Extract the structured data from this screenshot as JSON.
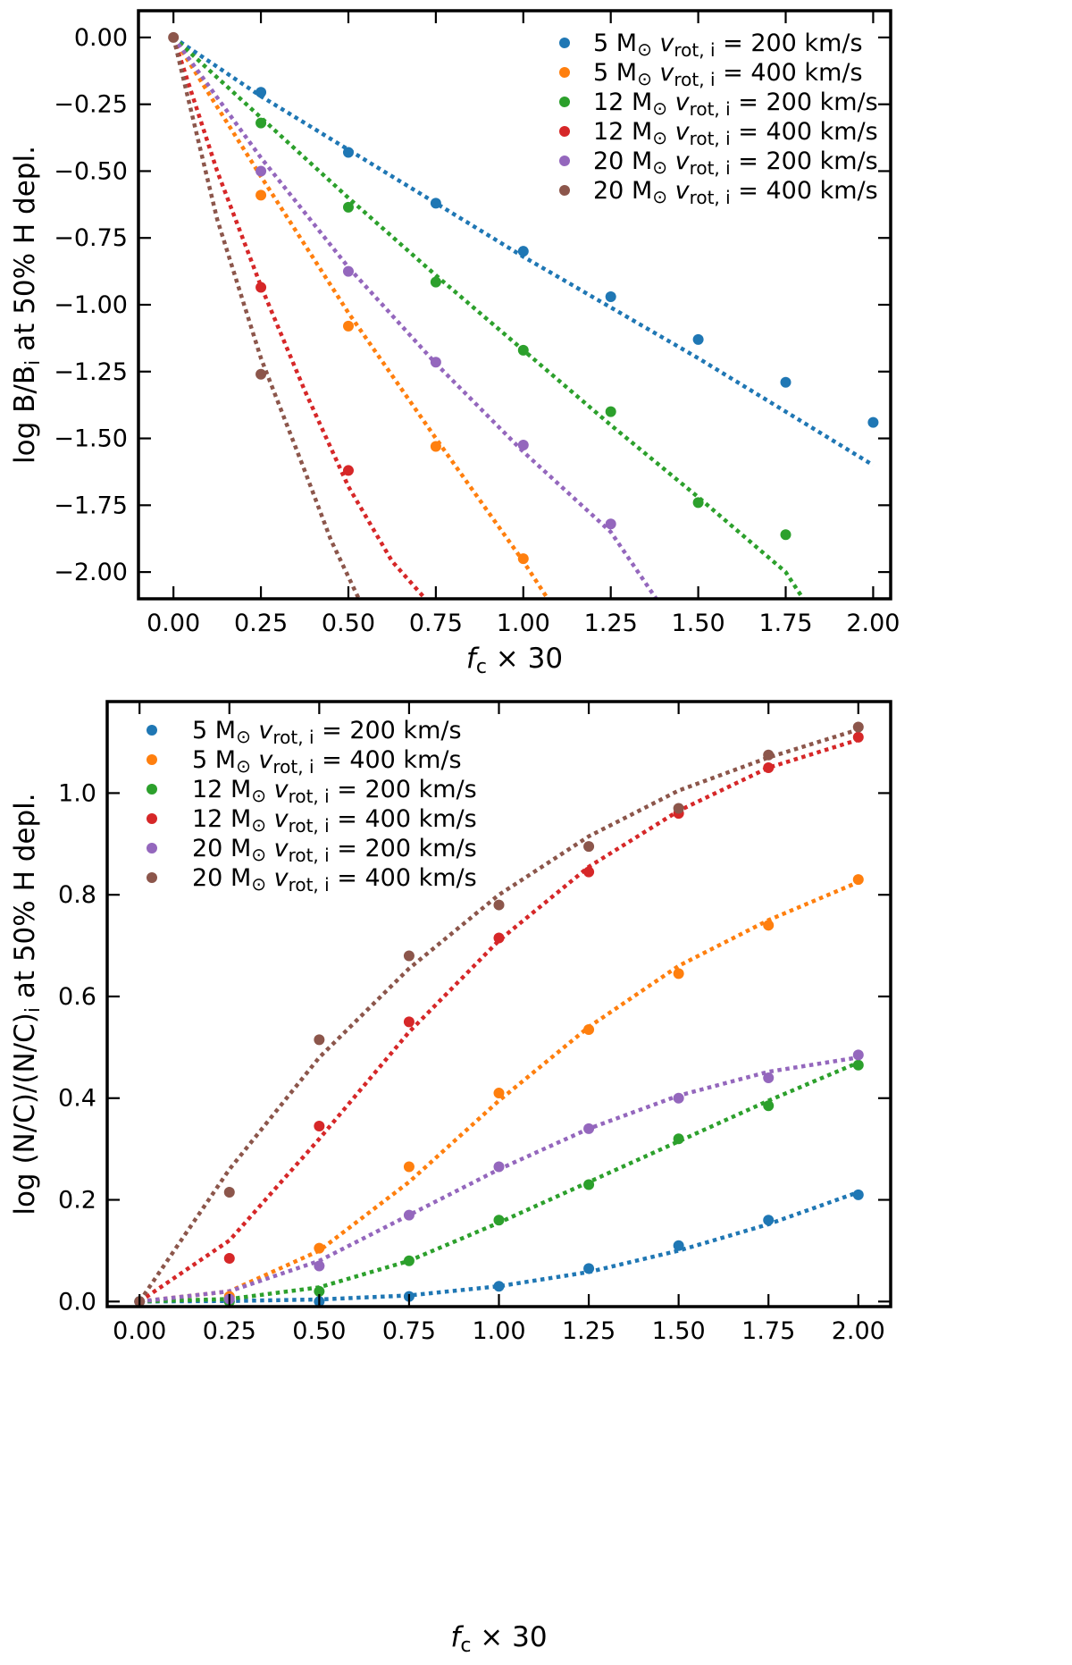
{
  "chart_data": [
    {
      "type": "scatter",
      "title": "",
      "xlabel": "f_c × 30",
      "ylabel": "log B/B_i at 50% H depl.",
      "xlim": [
        -0.1,
        2.05
      ],
      "ylim": [
        -2.1,
        0.1
      ],
      "xticks": [
        0.0,
        0.25,
        0.5,
        0.75,
        1.0,
        1.25,
        1.5,
        1.75,
        2.0
      ],
      "xtick_labels": [
        "0.00",
        "0.25",
        "0.50",
        "0.75",
        "1.00",
        "1.25",
        "1.50",
        "1.75",
        "2.00"
      ],
      "yticks": [
        0.0,
        -0.25,
        -0.5,
        -0.75,
        -1.0,
        -1.25,
        -1.5,
        -1.75,
        -2.0
      ],
      "ytick_labels": [
        "0.00",
        "−0.25",
        "−0.50",
        "−0.75",
        "−1.00",
        "−1.25",
        "−1.50",
        "−1.75",
        "−2.00"
      ],
      "grid": false,
      "legend_position": "top-right",
      "series": [
        {
          "mass": "5",
          "vrot": "200",
          "unit": "km/s",
          "color": "#1f77b4",
          "x": [
            0.25,
            0.5,
            0.75,
            1.0,
            1.25,
            1.5,
            1.75,
            2.0
          ],
          "y": [
            -0.205,
            -0.43,
            -0.62,
            -0.8,
            -0.97,
            -1.13,
            -1.29,
            -1.44
          ],
          "fit": [
            [
              0,
              0
            ],
            [
              0.25,
              -0.22
            ],
            [
              0.5,
              -0.42
            ],
            [
              0.75,
              -0.62
            ],
            [
              1.0,
              -0.82
            ],
            [
              1.25,
              -1.01
            ],
            [
              1.5,
              -1.2
            ],
            [
              1.75,
              -1.4
            ],
            [
              2.0,
              -1.6
            ]
          ]
        },
        {
          "mass": "5",
          "vrot": "400",
          "unit": "km/s",
          "color": "#ff7f0e",
          "x": [
            0.25,
            0.5,
            0.75,
            1.0
          ],
          "y": [
            -0.59,
            -1.08,
            -1.53,
            -1.95
          ],
          "fit": [
            [
              0,
              0
            ],
            [
              0.25,
              -0.52
            ],
            [
              0.5,
              -1.03
            ],
            [
              0.75,
              -1.5
            ],
            [
              1.0,
              -1.96
            ],
            [
              1.07,
              -2.1
            ]
          ]
        },
        {
          "mass": "12",
          "vrot": "200",
          "unit": "km/s",
          "color": "#2ca02c",
          "x": [
            0.25,
            0.5,
            0.75,
            1.0,
            1.25,
            1.5,
            1.75
          ],
          "y": [
            -0.32,
            -0.635,
            -0.915,
            -1.17,
            -1.4,
            -1.74,
            -1.86
          ],
          "fit": [
            [
              0,
              0
            ],
            [
              0.25,
              -0.3
            ],
            [
              0.5,
              -0.6
            ],
            [
              0.75,
              -0.89
            ],
            [
              1.0,
              -1.17
            ],
            [
              1.25,
              -1.45
            ],
            [
              1.5,
              -1.72
            ],
            [
              1.75,
              -2.0
            ],
            [
              1.8,
              -2.1
            ]
          ]
        },
        {
          "mass": "12",
          "vrot": "400",
          "unit": "km/s",
          "color": "#d62728",
          "x": [
            0.25,
            0.5
          ],
          "y": [
            -0.935,
            -1.62
          ],
          "fit": [
            [
              0,
              0
            ],
            [
              0.125,
              -0.5
            ],
            [
              0.25,
              -0.93
            ],
            [
              0.375,
              -1.32
            ],
            [
              0.5,
              -1.68
            ],
            [
              0.625,
              -1.96
            ],
            [
              0.72,
              -2.1
            ]
          ]
        },
        {
          "mass": "20",
          "vrot": "200",
          "unit": "km/s",
          "color": "#9467bd",
          "x": [
            0.25,
            0.5,
            0.75,
            1.0,
            1.25
          ],
          "y": [
            -0.5,
            -0.875,
            -1.215,
            -1.525,
            -1.82
          ],
          "fit": [
            [
              0,
              0
            ],
            [
              0.25,
              -0.45
            ],
            [
              0.5,
              -0.86
            ],
            [
              0.75,
              -1.22
            ],
            [
              1.0,
              -1.55
            ],
            [
              1.25,
              -1.85
            ],
            [
              1.38,
              -2.1
            ]
          ]
        },
        {
          "mass": "20",
          "vrot": "400",
          "unit": "km/s",
          "color": "#8c564b",
          "x": [
            0.0,
            0.25
          ],
          "y": [
            0.0,
            -1.26
          ],
          "fit": [
            [
              0,
              0
            ],
            [
              0.125,
              -0.68
            ],
            [
              0.25,
              -1.2
            ],
            [
              0.375,
              -1.62
            ],
            [
              0.45,
              -1.88
            ],
            [
              0.53,
              -2.1
            ]
          ]
        }
      ]
    },
    {
      "type": "scatter",
      "title": "",
      "xlabel": "f_c × 30",
      "ylabel": "log (N/C)/(N/C)_i at 50% H depl.",
      "xlim": [
        -0.09,
        2.09
      ],
      "ylim": [
        -0.01,
        1.18
      ],
      "xticks": [
        0.0,
        0.25,
        0.5,
        0.75,
        1.0,
        1.25,
        1.5,
        1.75,
        2.0
      ],
      "xtick_labels": [
        "0.00",
        "0.25",
        "0.50",
        "0.75",
        "1.00",
        "1.25",
        "1.50",
        "1.75",
        "2.00"
      ],
      "yticks": [
        0.0,
        0.2,
        0.4,
        0.6,
        0.8,
        1.0
      ],
      "ytick_labels": [
        "0.0",
        "0.2",
        "0.4",
        "0.6",
        "0.8",
        "1.0"
      ],
      "grid": false,
      "legend_position": "top-left",
      "series": [
        {
          "mass": "5",
          "vrot": "200",
          "unit": "km/s",
          "color": "#1f77b4",
          "x": [
            0.0,
            0.25,
            0.5,
            0.75,
            1.0,
            1.25,
            1.5,
            1.75,
            2.0
          ],
          "y": [
            0.0,
            0.0,
            0.0,
            0.01,
            0.03,
            0.065,
            0.11,
            0.16,
            0.21
          ],
          "fit": [
            [
              0,
              0
            ],
            [
              0.25,
              0.001
            ],
            [
              0.5,
              0.004
            ],
            [
              0.75,
              0.012
            ],
            [
              1.0,
              0.03
            ],
            [
              1.25,
              0.058
            ],
            [
              1.5,
              0.1
            ],
            [
              1.75,
              0.152
            ],
            [
              2.0,
              0.215
            ]
          ]
        },
        {
          "mass": "5",
          "vrot": "400",
          "unit": "km/s",
          "color": "#ff7f0e",
          "x": [
            0.25,
            0.5,
            0.75,
            1.0,
            1.25,
            1.5,
            1.75,
            2.0
          ],
          "y": [
            0.01,
            0.105,
            0.265,
            0.41,
            0.535,
            0.645,
            0.74,
            0.83
          ],
          "fit": [
            [
              0,
              0
            ],
            [
              0.25,
              0.02
            ],
            [
              0.5,
              0.1
            ],
            [
              0.75,
              0.235
            ],
            [
              1.0,
              0.395
            ],
            [
              1.25,
              0.54
            ],
            [
              1.5,
              0.66
            ],
            [
              1.75,
              0.75
            ],
            [
              2.0,
              0.825
            ]
          ]
        },
        {
          "mass": "12",
          "vrot": "200",
          "unit": "km/s",
          "color": "#2ca02c",
          "x": [
            0.25,
            0.5,
            0.75,
            1.0,
            1.25,
            1.5,
            1.75,
            2.0
          ],
          "y": [
            0.0,
            0.02,
            0.08,
            0.16,
            0.23,
            0.32,
            0.385,
            0.465
          ],
          "fit": [
            [
              0,
              0
            ],
            [
              0.25,
              0.005
            ],
            [
              0.5,
              0.028
            ],
            [
              0.75,
              0.08
            ],
            [
              1.0,
              0.155
            ],
            [
              1.25,
              0.235
            ],
            [
              1.5,
              0.315
            ],
            [
              1.75,
              0.395
            ],
            [
              2.0,
              0.47
            ]
          ]
        },
        {
          "mass": "12",
          "vrot": "400",
          "unit": "km/s",
          "color": "#d62728",
          "x": [
            0.25,
            0.5,
            0.75,
            1.0,
            1.25,
            1.5,
            1.75,
            2.0
          ],
          "y": [
            0.085,
            0.345,
            0.55,
            0.715,
            0.845,
            0.96,
            1.05,
            1.11
          ],
          "fit": [
            [
              0,
              0
            ],
            [
              0.25,
              0.12
            ],
            [
              0.5,
              0.32
            ],
            [
              0.75,
              0.53
            ],
            [
              1.0,
              0.71
            ],
            [
              1.25,
              0.855
            ],
            [
              1.5,
              0.965
            ],
            [
              1.75,
              1.05
            ],
            [
              2.0,
              1.105
            ]
          ]
        },
        {
          "mass": "20",
          "vrot": "200",
          "unit": "km/s",
          "color": "#9467bd",
          "x": [
            0.25,
            0.5,
            0.75,
            1.0,
            1.25,
            1.5,
            1.75,
            2.0
          ],
          "y": [
            0.005,
            0.07,
            0.17,
            0.265,
            0.34,
            0.4,
            0.44,
            0.485
          ],
          "fit": [
            [
              0,
              0
            ],
            [
              0.25,
              0.02
            ],
            [
              0.5,
              0.08
            ],
            [
              0.75,
              0.17
            ],
            [
              1.0,
              0.26
            ],
            [
              1.25,
              0.34
            ],
            [
              1.5,
              0.405
            ],
            [
              1.75,
              0.452
            ],
            [
              2.0,
              0.48
            ]
          ]
        },
        {
          "mass": "20",
          "vrot": "400",
          "unit": "km/s",
          "color": "#8c564b",
          "x": [
            0.0,
            0.25,
            0.5,
            0.75,
            1.0,
            1.25,
            1.5,
            1.75,
            2.0
          ],
          "y": [
            0.0,
            0.215,
            0.515,
            0.68,
            0.78,
            0.895,
            0.97,
            1.075,
            1.13
          ],
          "fit": [
            [
              0,
              0
            ],
            [
              0.25,
              0.26
            ],
            [
              0.5,
              0.48
            ],
            [
              0.75,
              0.655
            ],
            [
              1.0,
              0.8
            ],
            [
              1.25,
              0.915
            ],
            [
              1.5,
              1.005
            ],
            [
              1.75,
              1.07
            ],
            [
              2.0,
              1.125
            ]
          ]
        }
      ]
    }
  ]
}
